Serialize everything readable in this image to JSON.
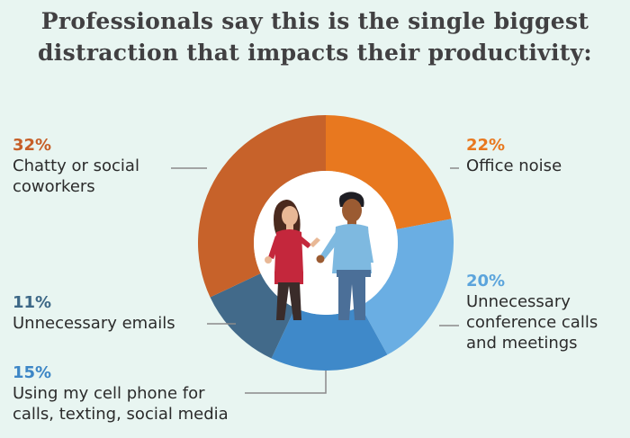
{
  "chart_data": {
    "type": "pie",
    "title_lines": [
      "Professionals say this is the single biggest",
      "distraction that impacts their productivity:"
    ],
    "slices": [
      {
        "name": "Office noise",
        "value": 22,
        "label": "22%",
        "lines": [
          "Office noise"
        ],
        "color": "#e8781f",
        "label_color": "#e8781f"
      },
      {
        "name": "Unnecessary conference calls and meetings",
        "value": 20,
        "label": "20%",
        "lines": [
          "Unnecessary",
          "conference calls",
          "and meetings"
        ],
        "color": "#6aaee3",
        "label_color": "#5ba4dc"
      },
      {
        "name": "Using my cell phone for calls, texting, social media",
        "value": 15,
        "label": "15%",
        "lines": [
          "Using my cell phone for",
          "calls, texting, social media"
        ],
        "color": "#3f89c9",
        "label_color": "#3d86c6"
      },
      {
        "name": "Unnecessary emails",
        "value": 11,
        "label": "11%",
        "lines": [
          "Unnecessary emails"
        ],
        "color": "#426a8a",
        "label_color": "#3c6786"
      },
      {
        "name": "Chatty or social coworkers",
        "value": 32,
        "label": "32%",
        "lines": [
          "Chatty or social",
          "coworkers"
        ],
        "color": "#c7622a",
        "label_color": "#c65f28"
      }
    ]
  },
  "colors": {
    "background": "#e8f5f1",
    "center": "#ffffff",
    "leader_line": "#8a8a8a"
  },
  "illustration": {
    "icon": "two-professionals-talking-icon"
  }
}
